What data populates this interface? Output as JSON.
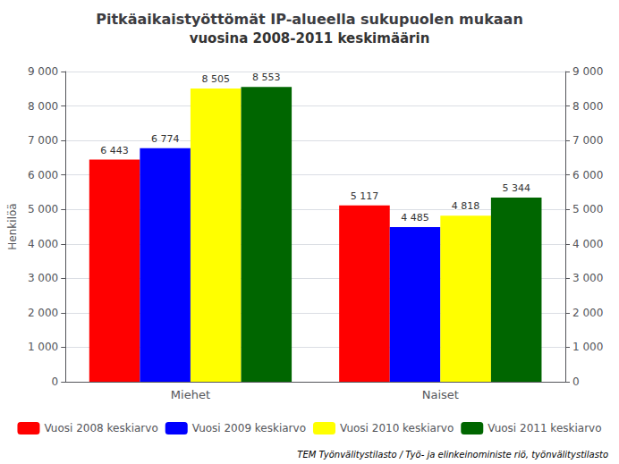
{
  "chart_data": {
    "type": "bar",
    "title": "Pitkäaikaistyöttömät IP-alueella sukupuolen mukaan",
    "subtitle": "vuosina 2008-2011 keskimäärin",
    "ylabel": "Henkilöä",
    "categories": [
      "Miehet",
      "Naiset"
    ],
    "series": [
      {
        "name": "Vuosi 2008 keskiarvo",
        "color": "#FF0000",
        "values": [
          6443,
          5117
        ],
        "value_labels": [
          "6 443",
          "5 117"
        ]
      },
      {
        "name": "Vuosi 2009 keskiarvo",
        "color": "#0000FF",
        "values": [
          6774,
          4485
        ],
        "value_labels": [
          "6 774",
          "4 485"
        ]
      },
      {
        "name": "Vuosi 2010 keskiarvo",
        "color": "#FFFF00",
        "values": [
          8505,
          4818
        ],
        "value_labels": [
          "8 505",
          "4 818"
        ]
      },
      {
        "name": "Vuosi 2011 keskiarvo",
        "color": "#006600",
        "values": [
          8553,
          5344
        ],
        "value_labels": [
          "8 553",
          "5 344"
        ]
      }
    ],
    "ylim": [
      0,
      9000
    ],
    "yticks": [
      0,
      {
        "value": 1000,
        "label": "1 000"
      },
      {
        "value": 2000,
        "label": "2 000"
      },
      {
        "value": 3000,
        "label": "3 000"
      },
      {
        "value": 4000,
        "label": "4 000"
      },
      {
        "value": 5000,
        "label": "5 000"
      },
      {
        "value": 6000,
        "label": "6 000"
      },
      {
        "value": 7000,
        "label": "7 000"
      },
      {
        "value": 8000,
        "label": "8 000"
      },
      {
        "value": 9000,
        "label": "9 000"
      }
    ],
    "y2lim": [
      0,
      9000
    ],
    "y2ticks": [
      0,
      {
        "value": 1000,
        "label": "1 000"
      },
      {
        "value": 2000,
        "label": "2 000"
      },
      {
        "value": 3000,
        "label": "3 000"
      },
      {
        "value": 4000,
        "label": "4 000"
      },
      {
        "value": 5000,
        "label": "5 000"
      },
      {
        "value": 6000,
        "label": "6 000"
      },
      {
        "value": 7000,
        "label": "7 000"
      },
      {
        "value": 8000,
        "label": "8 000"
      },
      {
        "value": 9000,
        "label": "9 000"
      }
    ],
    "grid": true,
    "legend": "bottom",
    "data_labels": true,
    "annotations": [
      "TEM Työnvälitystilasto / Työ- ja elinkeinoministe riö, työnvälitystilasto"
    ]
  }
}
